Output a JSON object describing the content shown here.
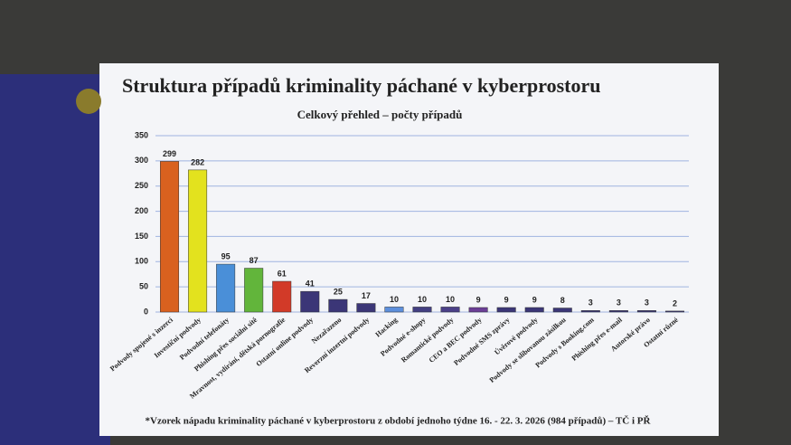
{
  "chart_data": {
    "type": "bar",
    "title": "Struktura případů kriminality páchané v kyberprostoru",
    "subtitle": "Celkový přehled – počty případů",
    "footnote": "*Vzorek nápadu kriminality páchané v kyberprostoru z období jednoho týdne 16. - 22. 3. 2026 (984 případů) – TČ i PŘ",
    "categories": [
      "Podvody spojené s inzercí",
      "Investiční podvody",
      "Podvodní telefonáty",
      "Phishing přes sociální sítě",
      "Mravnost, vydírání, dětská pornografie",
      "Ostatní online podvody",
      "Nezařazeno",
      "Reverzní inzertní podvody",
      "Hacking",
      "Podvodné e-shopy",
      "Romantické podvody",
      "CEO a BEC podvody",
      "Podvodné SMS zprávy",
      "Úvěrové podvody",
      "Podvody se slibovanou zásilkou",
      "Podvody s Booking.com",
      "Phishing přes e-mail",
      "Autorské právo",
      "Ostatní různé"
    ],
    "values": [
      299,
      282,
      95,
      87,
      61,
      41,
      25,
      17,
      10,
      10,
      10,
      9,
      9,
      9,
      8,
      3,
      3,
      3,
      2
    ],
    "colors": [
      "#d9611f",
      "#e3e21e",
      "#4a8fd8",
      "#62b53b",
      "#d23a28",
      "#3b3677",
      "#3b3677",
      "#3b3677",
      "#5d8fdc",
      "#433f82",
      "#4b4088",
      "#6b3e96",
      "#3b3677",
      "#3b3677",
      "#3b3677",
      "#3b3677",
      "#3b3677",
      "#3b3677",
      "#3b3677"
    ],
    "ylim": [
      0,
      350
    ],
    "yticks": [
      0,
      50,
      100,
      150,
      200,
      250,
      300,
      350
    ],
    "grid": true
  }
}
